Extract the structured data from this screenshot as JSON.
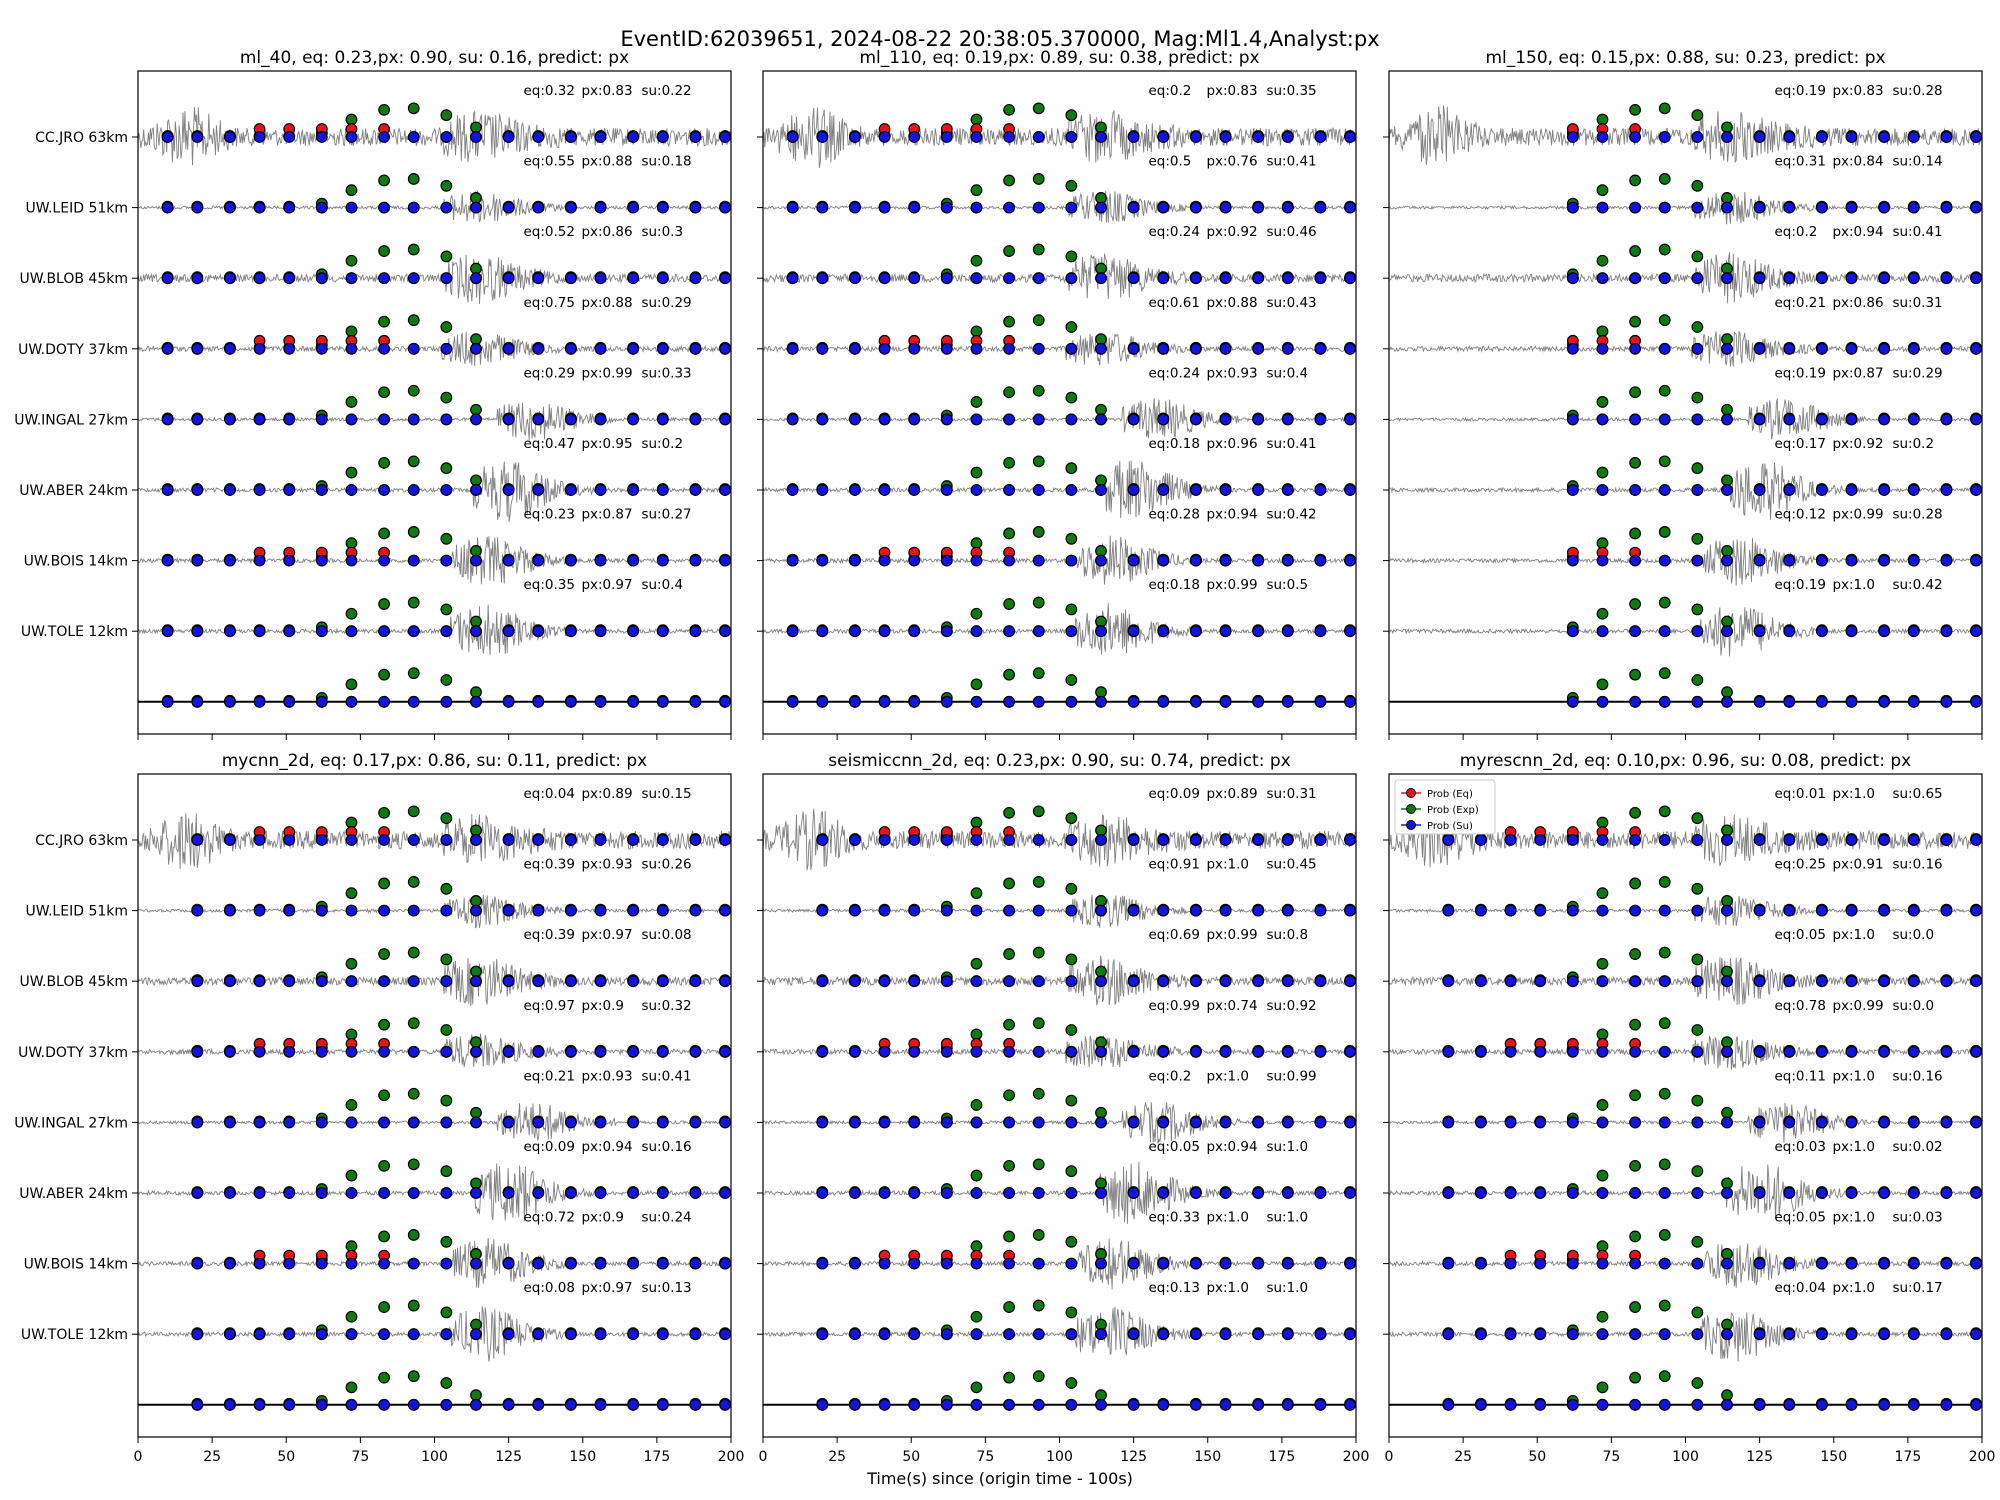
{
  "title": "EventID:62039651, 2024-08-22 20:38:05.370000, Mag:Ml1.4,Analyst:px",
  "xlabel": "Time(s) since (origin time - 100s)",
  "stations": [
    "CC.JRO 63km",
    "UW.LEID 51km",
    "UW.BLOB 45km",
    "UW.DOTY 37km",
    "UW.INGAL 27km",
    "UW.ABER 24km",
    "UW.BOIS 14km",
    "UW.TOLE 12km"
  ],
  "legend": [
    {
      "label": "Prob (Eq)",
      "color": "#e8141c"
    },
    {
      "label": "Prob (Exp)",
      "color": "#0f7a12"
    },
    {
      "label": "Prob (Su)",
      "color": "#1414e0"
    }
  ],
  "chart_data": {
    "type": "scatter",
    "xlim": [
      0,
      200
    ],
    "x_ticks": [
      "0",
      "25",
      "50",
      "75",
      "100",
      "125",
      "150",
      "175",
      "200"
    ],
    "window_times": [
      10,
      20,
      31,
      41,
      51,
      62,
      72,
      83,
      93,
      104,
      114,
      125,
      135,
      146,
      156,
      167,
      177,
      188,
      198
    ],
    "panels": [
      {
        "title": "ml_40, eq: 0.23,px: 0.90, su: 0.16, predict: px",
        "legend_visible": false,
        "windows_start": 0,
        "probs": [
          {
            "eq": "eq:0.32",
            "px": "px:0.83",
            "su": "su:0.22"
          },
          {
            "eq": "eq:0.55",
            "px": "px:0.88",
            "su": "su:0.18"
          },
          {
            "eq": "eq:0.52",
            "px": "px:0.86",
            "su": "su:0.3"
          },
          {
            "eq": "eq:0.75",
            "px": "px:0.88",
            "su": "su:0.29"
          },
          {
            "eq": "eq:0.29",
            "px": "px:0.99",
            "su": "su:0.33"
          },
          {
            "eq": "eq:0.47",
            "px": "px:0.95",
            "su": "su:0.2"
          },
          {
            "eq": "eq:0.23",
            "px": "px:0.87",
            "su": "su:0.27"
          },
          {
            "eq": "eq:0.35",
            "px": "px:0.97",
            "su": "su:0.4"
          }
        ]
      },
      {
        "title": "ml_110, eq: 0.19,px: 0.89, su: 0.38, predict: px",
        "legend_visible": false,
        "windows_start": 0,
        "probs": [
          {
            "eq": "eq:0.2",
            "px": "px:0.83",
            "su": "su:0.35"
          },
          {
            "eq": "eq:0.5",
            "px": "px:0.76",
            "su": "su:0.41"
          },
          {
            "eq": "eq:0.24",
            "px": "px:0.92",
            "su": "su:0.46"
          },
          {
            "eq": "eq:0.61",
            "px": "px:0.88",
            "su": "su:0.43"
          },
          {
            "eq": "eq:0.24",
            "px": "px:0.93",
            "su": "su:0.4"
          },
          {
            "eq": "eq:0.18",
            "px": "px:0.96",
            "su": "su:0.41"
          },
          {
            "eq": "eq:0.28",
            "px": "px:0.94",
            "su": "su:0.42"
          },
          {
            "eq": "eq:0.18",
            "px": "px:0.99",
            "su": "su:0.5"
          }
        ]
      },
      {
        "title": "ml_150, eq: 0.15,px: 0.88, su: 0.23, predict: px",
        "legend_visible": false,
        "windows_start": 5,
        "probs": [
          {
            "eq": "eq:0.19",
            "px": "px:0.83",
            "su": "su:0.28"
          },
          {
            "eq": "eq:0.31",
            "px": "px:0.84",
            "su": "su:0.14"
          },
          {
            "eq": "eq:0.2",
            "px": "px:0.94",
            "su": "su:0.41"
          },
          {
            "eq": "eq:0.21",
            "px": "px:0.86",
            "su": "su:0.31"
          },
          {
            "eq": "eq:0.19",
            "px": "px:0.87",
            "su": "su:0.29"
          },
          {
            "eq": "eq:0.17",
            "px": "px:0.92",
            "su": "su:0.2"
          },
          {
            "eq": "eq:0.12",
            "px": "px:0.99",
            "su": "su:0.28"
          },
          {
            "eq": "eq:0.19",
            "px": "px:1.0",
            "su": "su:0.42"
          }
        ]
      },
      {
        "title": "mycnn_2d, eq: 0.17,px: 0.86, su: 0.11, predict: px",
        "legend_visible": false,
        "windows_start": 1,
        "probs": [
          {
            "eq": "eq:0.04",
            "px": "px:0.89",
            "su": "su:0.15"
          },
          {
            "eq": "eq:0.39",
            "px": "px:0.93",
            "su": "su:0.26"
          },
          {
            "eq": "eq:0.39",
            "px": "px:0.97",
            "su": "su:0.08"
          },
          {
            "eq": "eq:0.97",
            "px": "px:0.9",
            "su": "su:0.32"
          },
          {
            "eq": "eq:0.21",
            "px": "px:0.93",
            "su": "su:0.41"
          },
          {
            "eq": "eq:0.09",
            "px": "px:0.94",
            "su": "su:0.16"
          },
          {
            "eq": "eq:0.72",
            "px": "px:0.9",
            "su": "su:0.24"
          },
          {
            "eq": "eq:0.08",
            "px": "px:0.97",
            "su": "su:0.13"
          }
        ]
      },
      {
        "title": "seismiccnn_2d, eq: 0.23,px: 0.90, su: 0.74, predict: px",
        "legend_visible": false,
        "windows_start": 1,
        "probs": [
          {
            "eq": "eq:0.09",
            "px": "px:0.89",
            "su": "su:0.31"
          },
          {
            "eq": "eq:0.91",
            "px": "px:1.0",
            "su": "su:0.45"
          },
          {
            "eq": "eq:0.69",
            "px": "px:0.99",
            "su": "su:0.8"
          },
          {
            "eq": "eq:0.99",
            "px": "px:0.74",
            "su": "su:0.92"
          },
          {
            "eq": "eq:0.2",
            "px": "px:1.0",
            "su": "su:0.99"
          },
          {
            "eq": "eq:0.05",
            "px": "px:0.94",
            "su": "su:1.0"
          },
          {
            "eq": "eq:0.33",
            "px": "px:1.0",
            "su": "su:1.0"
          },
          {
            "eq": "eq:0.13",
            "px": "px:1.0",
            "su": "su:1.0"
          }
        ]
      },
      {
        "title": "myrescnn_2d, eq: 0.10,px: 0.96, su: 0.08, predict: px",
        "legend_visible": true,
        "windows_start": 1,
        "probs": [
          {
            "eq": "eq:0.01",
            "px": "px:1.0",
            "su": "su:0.65"
          },
          {
            "eq": "eq:0.25",
            "px": "px:0.91",
            "su": "su:0.16"
          },
          {
            "eq": "eq:0.05",
            "px": "px:1.0",
            "su": "su:0.0"
          },
          {
            "eq": "eq:0.78",
            "px": "px:0.99",
            "su": "su:0.0"
          },
          {
            "eq": "eq:0.11",
            "px": "px:1.0",
            "su": "su:0.16"
          },
          {
            "eq": "eq:0.03",
            "px": "px:1.0",
            "su": "su:0.02"
          },
          {
            "eq": "eq:0.05",
            "px": "px:1.0",
            "su": "su:0.03"
          },
          {
            "eq": "eq:0.04",
            "px": "px:1.0",
            "su": "su:0.17"
          }
        ]
      }
    ]
  }
}
